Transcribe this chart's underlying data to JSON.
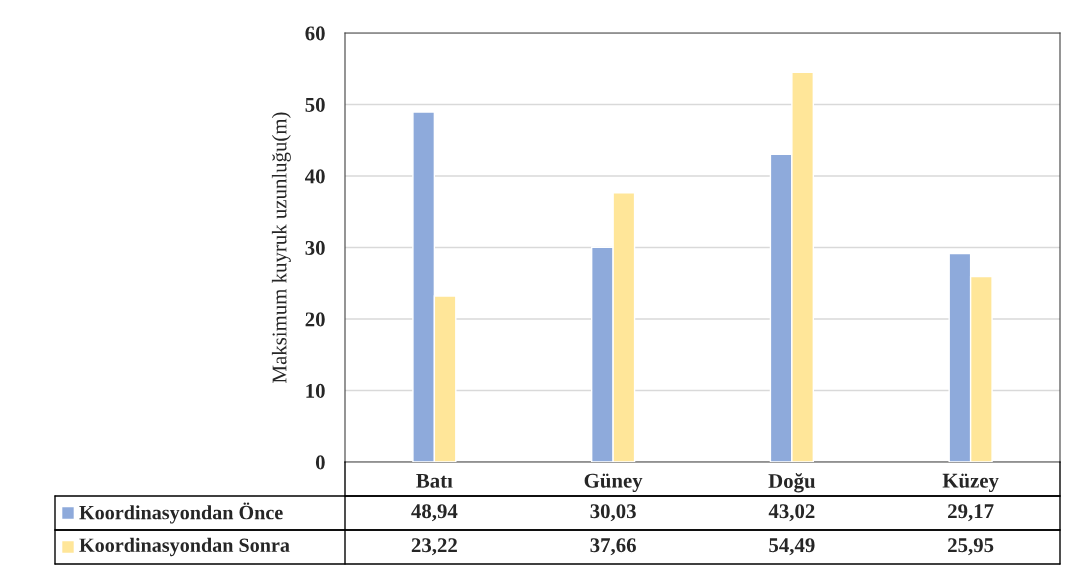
{
  "chart_data": {
    "type": "bar",
    "ylabel": "Maksimum kuyruk uzunluğu(m)",
    "categories": [
      "Batı",
      "Güney",
      "Doğu",
      "Küzey"
    ],
    "series": [
      {
        "name": "Koordinasyondan Önce",
        "color": "#8eaadb",
        "values": [
          48.94,
          30.03,
          43.02,
          29.17
        ],
        "value_labels": [
          "48,94",
          "30,03",
          "43,02",
          "29,17"
        ]
      },
      {
        "name": "Koordinasyondan Sonra",
        "color": "#ffe699",
        "values": [
          23.22,
          37.66,
          54.49,
          25.95
        ],
        "value_labels": [
          "23,22",
          "37,66",
          "54,49",
          "25,95"
        ]
      }
    ],
    "ylim": [
      0,
      60
    ],
    "yticks": [
      0,
      10,
      20,
      30,
      40,
      50,
      60
    ],
    "grid": "y",
    "legend": "bottom"
  }
}
